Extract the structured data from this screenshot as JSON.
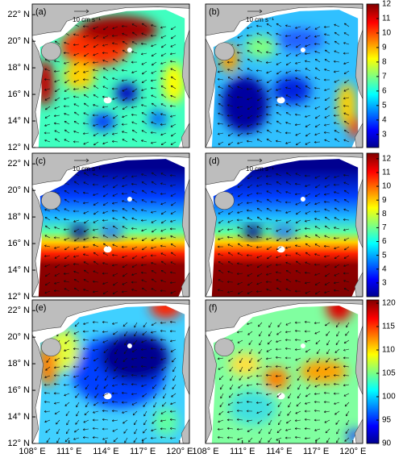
{
  "chart_data": [
    {
      "type": "map",
      "label": "(a)",
      "scale_label": "10 cm s⁻¹",
      "xlim": [
        108,
        120.8
      ],
      "ylim": [
        12,
        22.8
      ],
      "yticks": [
        {
          "value": 12,
          "label": "12° N"
        },
        {
          "value": 14,
          "label": "14° N"
        },
        {
          "value": 16,
          "label": "16° N"
        },
        {
          "value": 18,
          "label": "18° N"
        },
        {
          "value": 20,
          "label": "20° N"
        },
        {
          "value": 22,
          "label": "22° N"
        }
      ]
    },
    {
      "type": "map",
      "label": "(b)",
      "scale_label": "10 cm s⁻¹",
      "xlim": [
        108,
        120.8
      ],
      "ylim": [
        12,
        22.8
      ],
      "colorbar": {
        "ylim": [
          2.1,
          12
        ],
        "yticks": [
          3,
          4,
          5,
          6,
          7,
          8,
          9,
          10,
          11,
          12
        ]
      }
    },
    {
      "type": "map",
      "label": "(c)",
      "scale_label": "10 cm s⁻¹",
      "xlim": [
        108,
        120.8
      ],
      "ylim": [
        12,
        22.8
      ],
      "yticks": [
        {
          "value": 12,
          "label": "12° N"
        },
        {
          "value": 14,
          "label": "14° N"
        },
        {
          "value": 16,
          "label": "16° N"
        },
        {
          "value": 18,
          "label": "18° N"
        },
        {
          "value": 20,
          "label": "20° N"
        },
        {
          "value": 22,
          "label": "22° N"
        }
      ]
    },
    {
      "type": "map",
      "label": "(d)",
      "scale_label": "10 cm s⁻¹",
      "xlim": [
        108,
        120.8
      ],
      "ylim": [
        12,
        22.8
      ],
      "colorbar": {
        "ylim": [
          2,
          12.4
        ],
        "yticks": [
          3,
          4,
          5,
          6,
          7,
          8,
          9,
          10,
          11,
          12
        ]
      }
    },
    {
      "type": "map",
      "label": "(e)",
      "xlim": [
        108,
        120.8
      ],
      "ylim": [
        12,
        22.8
      ],
      "yticks": [
        {
          "value": 12,
          "label": "12° N"
        },
        {
          "value": 14,
          "label": "14° N"
        },
        {
          "value": 16,
          "label": "16° N"
        },
        {
          "value": 18,
          "label": "18° N"
        },
        {
          "value": 20,
          "label": "20° N"
        },
        {
          "value": 22,
          "label": "22° N"
        }
      ],
      "xticks": [
        {
          "value": 108,
          "label": "108° E"
        },
        {
          "value": 111,
          "label": "111° E"
        },
        {
          "value": 114,
          "label": "114° E"
        },
        {
          "value": 117,
          "label": "117° E"
        },
        {
          "value": 120,
          "label": "120° E"
        }
      ]
    },
    {
      "type": "map",
      "label": "(f)",
      "xlim": [
        108,
        120.8
      ],
      "ylim": [
        12,
        22.8
      ],
      "xticks": [
        {
          "value": 108,
          "label": "108° E"
        },
        {
          "value": 111,
          "label": "111° E"
        },
        {
          "value": 114,
          "label": "114° E"
        },
        {
          "value": 117,
          "label": "117° E"
        },
        {
          "value": 120,
          "label": "120° E"
        }
      ],
      "colorbar": {
        "ylim": [
          90,
          120.7
        ],
        "yticks": [
          90,
          95,
          100,
          105,
          110,
          115,
          120
        ]
      }
    }
  ]
}
